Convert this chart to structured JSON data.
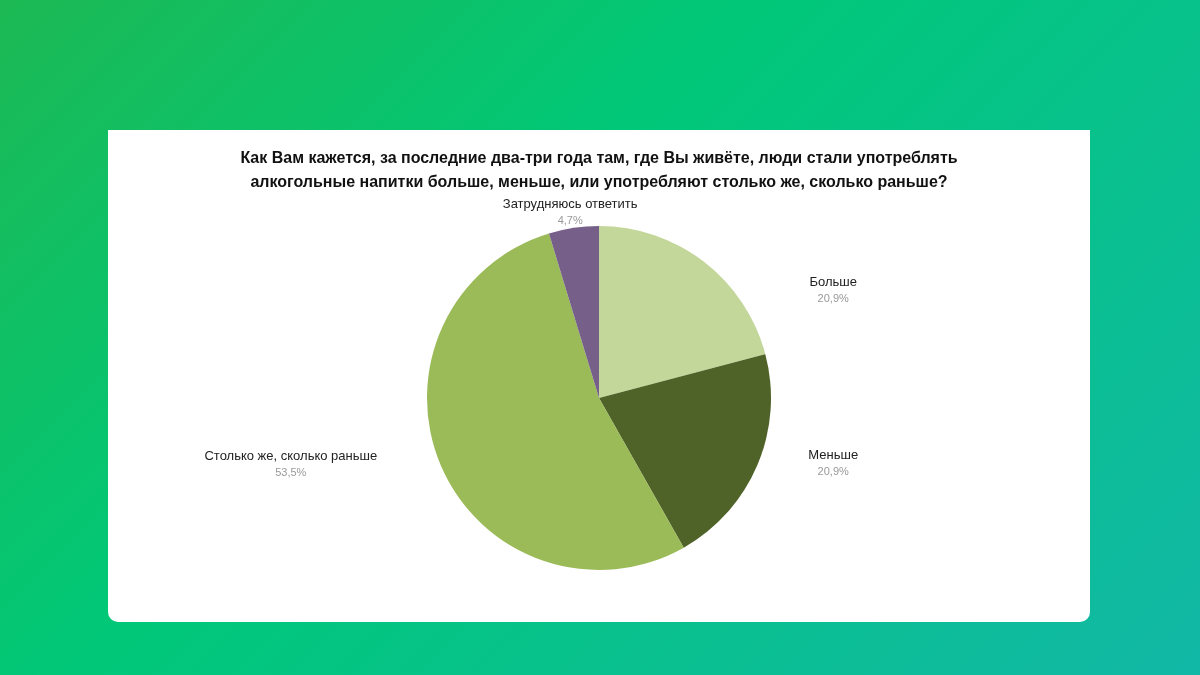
{
  "chart_data": {
    "type": "pie",
    "title": "Как Вам кажется, за последние два-три года там, где Вы живёте, люди стали употреблять алкогольные напитки больше, меньше, или употребляют столько же, сколько раньше?",
    "categories": [
      "Больше",
      "Меньше",
      "Столько же, сколько раньше",
      "Затрудняюсь ответить"
    ],
    "values": [
      20.9,
      20.9,
      53.5,
      4.7
    ],
    "colors": [
      "#c4d79b",
      "#4f6228",
      "#9bbb59",
      "#76608a"
    ],
    "value_labels": [
      "20,9%",
      "20,9%",
      "53,5%",
      "4,7%"
    ],
    "legend": false
  }
}
